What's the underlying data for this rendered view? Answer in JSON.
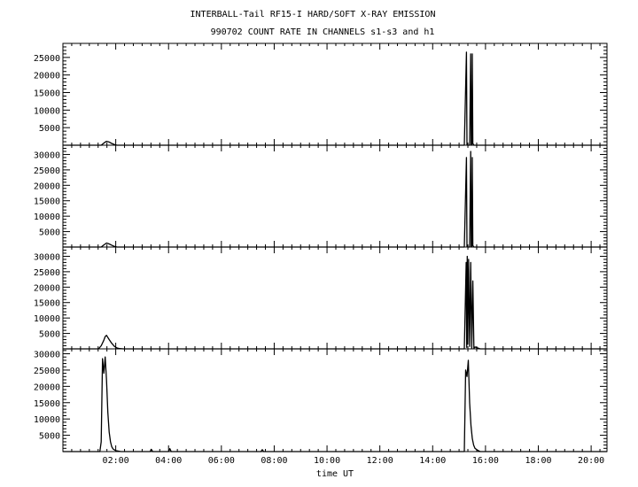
{
  "chart_data": {
    "type": "line",
    "title_line1": "INTERBALL-Tail RF15-I HARD/SOFT X-RAY EMISSION",
    "title_line2": "990702  COUNT RATE IN CHANNELS s1-s3 and h1",
    "xlabel": "time UT",
    "xlim_hours": [
      0.0,
      20.6
    ],
    "x_ticks": [
      {
        "hour": 2,
        "label": "02:00"
      },
      {
        "hour": 4,
        "label": "04:00"
      },
      {
        "hour": 6,
        "label": "06:00"
      },
      {
        "hour": 8,
        "label": "08:00"
      },
      {
        "hour": 10,
        "label": "10:00"
      },
      {
        "hour": 12,
        "label": "12:00"
      },
      {
        "hour": 14,
        "label": "14:00"
      },
      {
        "hour": 16,
        "label": "16:00"
      },
      {
        "hour": 18,
        "label": "18:00"
      },
      {
        "hour": 20,
        "label": "20:00"
      }
    ],
    "panels": [
      {
        "channel": "s1",
        "ylim": [
          0,
          29000
        ],
        "y_ticks": [
          5000,
          10000,
          15000,
          20000,
          25000
        ],
        "x": [
          0,
          1.45,
          1.55,
          1.65,
          1.75,
          1.85,
          1.95,
          2.05,
          15.2,
          15.28,
          15.3,
          15.32,
          15.34,
          15.4,
          15.44,
          15.46,
          15.48,
          15.5,
          15.52,
          15.56,
          20.6
        ],
        "y": [
          0,
          0,
          600,
          1100,
          900,
          500,
          200,
          0,
          0,
          26500,
          200,
          0,
          0,
          0,
          26000,
          300,
          0,
          26000,
          500,
          0,
          0
        ]
      },
      {
        "channel": "s2",
        "ylim": [
          0,
          33000
        ],
        "y_ticks": [
          5000,
          10000,
          15000,
          20000,
          25000,
          30000
        ],
        "x": [
          0,
          1.45,
          1.55,
          1.65,
          1.75,
          1.85,
          1.95,
          2.05,
          15.2,
          15.28,
          15.3,
          15.32,
          15.34,
          15.4,
          15.44,
          15.46,
          15.48,
          15.5,
          15.52,
          15.56,
          20.6
        ],
        "y": [
          0,
          0,
          700,
          1300,
          1000,
          600,
          200,
          0,
          0,
          29000,
          200,
          0,
          0,
          0,
          31000,
          300,
          0,
          29000,
          500,
          0,
          0
        ]
      },
      {
        "channel": "s3",
        "ylim": [
          0,
          33000
        ],
        "y_ticks": [
          5000,
          10000,
          15000,
          20000,
          25000,
          30000
        ],
        "x": [
          0,
          1.35,
          1.45,
          1.55,
          1.6,
          1.65,
          1.75,
          1.85,
          1.95,
          2.05,
          2.15,
          2.3,
          15.2,
          15.27,
          15.29,
          15.31,
          15.33,
          15.36,
          15.4,
          15.44,
          15.48,
          15.52,
          15.56,
          15.6,
          15.8,
          20.6
        ],
        "y": [
          0,
          0,
          1000,
          2800,
          4000,
          4400,
          3000,
          1800,
          800,
          300,
          100,
          0,
          0,
          28000,
          500,
          30000,
          1500,
          29000,
          800,
          28000,
          300,
          22000,
          200,
          600,
          0,
          0
        ]
      },
      {
        "channel": "h1",
        "ylim": [
          0,
          31500
        ],
        "y_ticks": [
          5000,
          10000,
          15000,
          20000,
          25000,
          30000
        ],
        "x": [
          0,
          1.4,
          1.45,
          1.5,
          1.55,
          1.6,
          1.65,
          1.7,
          1.75,
          1.8,
          1.85,
          1.9,
          2.0,
          2.2,
          3.3,
          3.35,
          3.4,
          4.0,
          4.05,
          4.1,
          7.5,
          7.55,
          7.6,
          15.2,
          15.25,
          15.3,
          15.35,
          15.4,
          15.45,
          15.5,
          15.55,
          15.6,
          15.7,
          15.8,
          20.6
        ],
        "y": [
          0,
          0,
          3000,
          28500,
          24000,
          29000,
          22000,
          12000,
          6000,
          3000,
          1500,
          800,
          300,
          0,
          0,
          700,
          0,
          0,
          900,
          0,
          0,
          600,
          0,
          0,
          25000,
          23000,
          28000,
          15000,
          8000,
          4000,
          2000,
          1000,
          400,
          0,
          0
        ]
      }
    ]
  }
}
